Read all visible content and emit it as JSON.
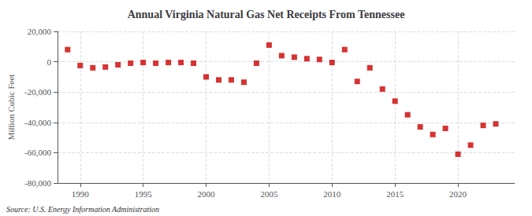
{
  "chart_data": {
    "type": "scatter",
    "title": "Annual Virginia Natural Gas Net Receipts From Tennessee",
    "ylabel": "Million Cubic Feet",
    "annotation": "Source: U.S. Energy Information Administration",
    "x": [
      1989,
      1990,
      1991,
      1992,
      1993,
      1994,
      1995,
      1996,
      1997,
      1998,
      1999,
      2000,
      2001,
      2002,
      2003,
      2004,
      2005,
      2006,
      2007,
      2008,
      2009,
      2010,
      2011,
      2012,
      2013,
      2014,
      2015,
      2016,
      2017,
      2018,
      2019,
      2020,
      2021,
      2022,
      2023
    ],
    "values": [
      8000,
      -2500,
      -4000,
      -3500,
      -2000,
      -1000,
      -500,
      -1000,
      -500,
      -500,
      -1000,
      -10000,
      -12000,
      -12000,
      -13500,
      -1000,
      11000,
      4000,
      3000,
      2000,
      1500,
      -500,
      8000,
      -13000,
      -4000,
      -18000,
      -26000,
      -35000,
      -43000,
      -48000,
      -44000,
      -61000,
      -55000,
      -42000,
      -41000
    ],
    "color": "#cc0000",
    "marker": "square",
    "xlim": [
      1988.2,
      2024.5
    ],
    "xticks": [
      1990,
      1995,
      2000,
      2005,
      2010,
      2015,
      2020
    ],
    "ylim": [
      -80000,
      20000
    ],
    "yticks": [
      {
        "value": -80000,
        "label": "-80,000"
      },
      {
        "value": -60000,
        "label": "-60,000"
      },
      {
        "value": -40000,
        "label": "-40,000"
      },
      {
        "value": -20000,
        "label": "-20,000"
      },
      0,
      {
        "value": 20000,
        "label": "20,000"
      }
    ],
    "grid": true
  }
}
